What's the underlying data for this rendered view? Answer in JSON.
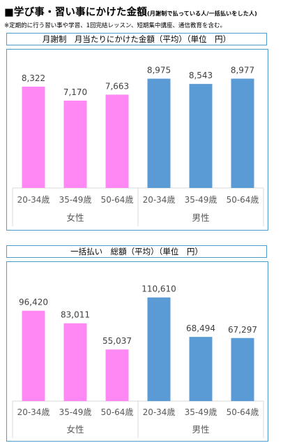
{
  "header": {
    "title": "■学び事・習い事にかけた金額",
    "subtitle": "(月謝制で払っている人/一括払いをした人)",
    "note": "※定期的に行う習い事や学習、1回完結レッスン、短期集中講座、通信教育を含む。"
  },
  "colors": {
    "female": "#ff88f4",
    "male": "#5b9bd5",
    "frame": "#4a9bc9"
  },
  "chart_data": [
    {
      "type": "bar",
      "title": "月謝制　月当たりにかけた金額（平均）（単位　円）",
      "categories": [
        "20-34歳",
        "35-49歳",
        "50-64歳",
        "20-34歳",
        "35-49歳",
        "50-64歳"
      ],
      "groups": [
        {
          "name": "女性",
          "indices": [
            0,
            1,
            2
          ]
        },
        {
          "name": "男性",
          "indices": [
            3,
            4,
            5
          ]
        }
      ],
      "values": [
        8322,
        7170,
        7663,
        8975,
        8543,
        8977
      ],
      "value_labels": [
        "8,322",
        "7,170",
        "7,663",
        "8,975",
        "8,543",
        "8,977"
      ],
      "ylim": [
        0,
        10100
      ],
      "grid": false
    },
    {
      "type": "bar",
      "title": "一括払い　総額（平均）（単位　円）",
      "categories": [
        "20-34歳",
        "35-49歳",
        "50-64歳",
        "20-34歳",
        "35-49歳",
        "50-64歳"
      ],
      "groups": [
        {
          "name": "女性",
          "indices": [
            0,
            1,
            2
          ]
        },
        {
          "name": "男性",
          "indices": [
            3,
            4,
            5
          ]
        }
      ],
      "values": [
        96420,
        83011,
        55037,
        110610,
        68494,
        67297
      ],
      "value_labels": [
        "96,420",
        "83,011",
        "55,037",
        "110,610",
        "68,494",
        "67,297"
      ],
      "ylim": [
        0,
        132000
      ],
      "grid": false
    }
  ]
}
